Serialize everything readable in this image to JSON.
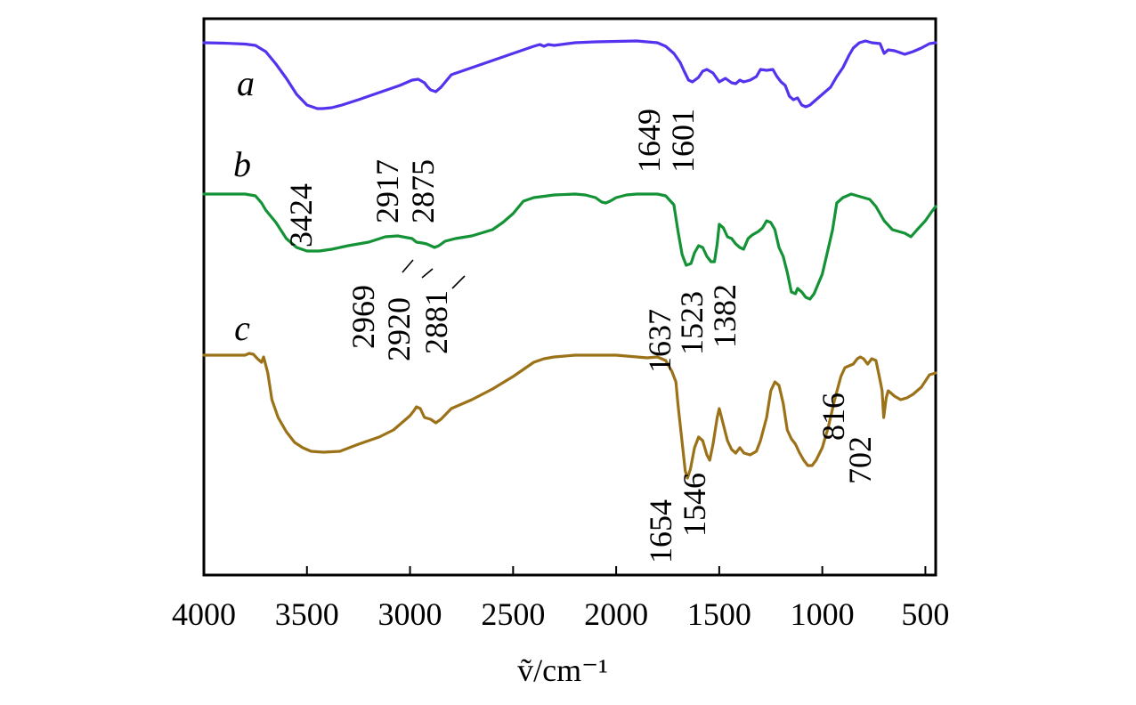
{
  "chart_data": {
    "type": "line",
    "title": "",
    "xlabel": "ṽ/cm⁻¹",
    "ylabel": "",
    "xlim": [
      4000,
      450
    ],
    "x_reversed": true,
    "x_ticks": [
      4000,
      3500,
      3000,
      2500,
      2000,
      1500,
      1000,
      500
    ],
    "y_ticks": false,
    "grid": false,
    "series": [
      {
        "name": "a",
        "color": "#5533ee",
        "points": [
          [
            4000,
            2.0
          ],
          [
            3900,
            2.5
          ],
          [
            3800,
            3.5
          ],
          [
            3750,
            5
          ],
          [
            3700,
            12
          ],
          [
            3650,
            26
          ],
          [
            3600,
            42
          ],
          [
            3550,
            60
          ],
          [
            3500,
            72
          ],
          [
            3450,
            76
          ],
          [
            3424,
            76
          ],
          [
            3380,
            75
          ],
          [
            3330,
            72
          ],
          [
            3250,
            66
          ],
          [
            3150,
            58
          ],
          [
            3050,
            50
          ],
          [
            2990,
            44
          ],
          [
            2960,
            43
          ],
          [
            2930,
            47
          ],
          [
            2917,
            51
          ],
          [
            2900,
            55
          ],
          [
            2875,
            57
          ],
          [
            2850,
            52
          ],
          [
            2800,
            38
          ],
          [
            2750,
            34
          ],
          [
            2650,
            26
          ],
          [
            2550,
            18
          ],
          [
            2450,
            10
          ],
          [
            2400,
            6
          ],
          [
            2370,
            4
          ],
          [
            2350,
            6
          ],
          [
            2330,
            4
          ],
          [
            2300,
            5
          ],
          [
            2200,
            2
          ],
          [
            2100,
            1
          ],
          [
            2000,
            0.5
          ],
          [
            1900,
            0
          ],
          [
            1800,
            2
          ],
          [
            1760,
            6
          ],
          [
            1720,
            14
          ],
          [
            1690,
            24
          ],
          [
            1670,
            34
          ],
          [
            1649,
            44
          ],
          [
            1630,
            46
          ],
          [
            1601,
            41
          ],
          [
            1580,
            34
          ],
          [
            1560,
            32
          ],
          [
            1530,
            36
          ],
          [
            1500,
            46
          ],
          [
            1470,
            42
          ],
          [
            1440,
            47
          ],
          [
            1420,
            48
          ],
          [
            1400,
            44
          ],
          [
            1382,
            46
          ],
          [
            1350,
            44
          ],
          [
            1320,
            40
          ],
          [
            1300,
            32
          ],
          [
            1270,
            33
          ],
          [
            1240,
            32
          ],
          [
            1220,
            40
          ],
          [
            1200,
            46
          ],
          [
            1180,
            50
          ],
          [
            1160,
            62
          ],
          [
            1140,
            66
          ],
          [
            1120,
            64
          ],
          [
            1100,
            72
          ],
          [
            1080,
            74
          ],
          [
            1060,
            72
          ],
          [
            1040,
            68
          ],
          [
            1000,
            60
          ],
          [
            960,
            52
          ],
          [
            930,
            40
          ],
          [
            900,
            30
          ],
          [
            870,
            16
          ],
          [
            850,
            8
          ],
          [
            820,
            2
          ],
          [
            790,
            0
          ],
          [
            760,
            2
          ],
          [
            720,
            3
          ],
          [
            700,
            14
          ],
          [
            680,
            10
          ],
          [
            650,
            11
          ],
          [
            600,
            15
          ],
          [
            560,
            12
          ],
          [
            520,
            8
          ],
          [
            480,
            3
          ],
          [
            450,
            2
          ]
        ]
      },
      {
        "name": "b",
        "color": "#139236",
        "points": [
          [
            4000,
            0
          ],
          [
            3800,
            0
          ],
          [
            3750,
            2
          ],
          [
            3720,
            10
          ],
          [
            3700,
            18
          ],
          [
            3650,
            32
          ],
          [
            3600,
            50
          ],
          [
            3550,
            60
          ],
          [
            3500,
            64
          ],
          [
            3440,
            64
          ],
          [
            3380,
            62
          ],
          [
            3300,
            58
          ],
          [
            3200,
            54
          ],
          [
            3120,
            48
          ],
          [
            3060,
            47
          ],
          [
            2990,
            50
          ],
          [
            2969,
            54
          ],
          [
            2940,
            55
          ],
          [
            2920,
            56
          ],
          [
            2900,
            58
          ],
          [
            2881,
            60
          ],
          [
            2860,
            58
          ],
          [
            2830,
            53
          ],
          [
            2780,
            50
          ],
          [
            2700,
            47
          ],
          [
            2600,
            40
          ],
          [
            2550,
            32
          ],
          [
            2500,
            22
          ],
          [
            2450,
            8
          ],
          [
            2400,
            4
          ],
          [
            2300,
            1
          ],
          [
            2200,
            0
          ],
          [
            2150,
            1
          ],
          [
            2100,
            4
          ],
          [
            2070,
            9
          ],
          [
            2050,
            10
          ],
          [
            2030,
            8
          ],
          [
            2000,
            4
          ],
          [
            1950,
            1
          ],
          [
            1900,
            0
          ],
          [
            1800,
            0
          ],
          [
            1760,
            2
          ],
          [
            1720,
            12
          ],
          [
            1700,
            42
          ],
          [
            1680,
            68
          ],
          [
            1660,
            80
          ],
          [
            1637,
            78
          ],
          [
            1620,
            66
          ],
          [
            1600,
            58
          ],
          [
            1580,
            60
          ],
          [
            1560,
            70
          ],
          [
            1540,
            76
          ],
          [
            1523,
            76
          ],
          [
            1510,
            56
          ],
          [
            1500,
            34
          ],
          [
            1480,
            38
          ],
          [
            1460,
            48
          ],
          [
            1440,
            50
          ],
          [
            1420,
            56
          ],
          [
            1400,
            60
          ],
          [
            1382,
            62
          ],
          [
            1360,
            50
          ],
          [
            1340,
            46
          ],
          [
            1310,
            42
          ],
          [
            1290,
            38
          ],
          [
            1270,
            30
          ],
          [
            1250,
            32
          ],
          [
            1230,
            40
          ],
          [
            1210,
            60
          ],
          [
            1190,
            70
          ],
          [
            1170,
            88
          ],
          [
            1150,
            110
          ],
          [
            1130,
            112
          ],
          [
            1120,
            106
          ],
          [
            1100,
            110
          ],
          [
            1080,
            116
          ],
          [
            1060,
            118
          ],
          [
            1040,
            112
          ],
          [
            1000,
            90
          ],
          [
            970,
            60
          ],
          [
            950,
            40
          ],
          [
            930,
            10
          ],
          [
            900,
            4
          ],
          [
            860,
            0
          ],
          [
            830,
            2
          ],
          [
            800,
            4
          ],
          [
            770,
            6
          ],
          [
            740,
            14
          ],
          [
            700,
            30
          ],
          [
            660,
            40
          ],
          [
            630,
            42
          ],
          [
            600,
            44
          ],
          [
            570,
            48
          ],
          [
            540,
            40
          ],
          [
            500,
            30
          ],
          [
            470,
            20
          ],
          [
            450,
            14
          ]
        ]
      },
      {
        "name": "c",
        "color": "#9b7218",
        "points": [
          [
            4000,
            0
          ],
          [
            3800,
            0
          ],
          [
            3780,
            -2
          ],
          [
            3760,
            -1
          ],
          [
            3740,
            4
          ],
          [
            3720,
            8
          ],
          [
            3710,
            2
          ],
          [
            3690,
            20
          ],
          [
            3670,
            50
          ],
          [
            3640,
            70
          ],
          [
            3600,
            86
          ],
          [
            3560,
            98
          ],
          [
            3520,
            104
          ],
          [
            3480,
            108
          ],
          [
            3420,
            109
          ],
          [
            3340,
            108
          ],
          [
            3250,
            100
          ],
          [
            3150,
            92
          ],
          [
            3080,
            84
          ],
          [
            3030,
            74
          ],
          [
            3000,
            68
          ],
          [
            2980,
            62
          ],
          [
            2969,
            58
          ],
          [
            2950,
            60
          ],
          [
            2930,
            70
          ],
          [
            2900,
            72
          ],
          [
            2875,
            76
          ],
          [
            2850,
            72
          ],
          [
            2800,
            60
          ],
          [
            2700,
            50
          ],
          [
            2600,
            38
          ],
          [
            2500,
            24
          ],
          [
            2400,
            8
          ],
          [
            2350,
            4
          ],
          [
            2300,
            2
          ],
          [
            2200,
            0
          ],
          [
            2000,
            0
          ],
          [
            1900,
            2
          ],
          [
            1850,
            3
          ],
          [
            1800,
            2
          ],
          [
            1760,
            6
          ],
          [
            1730,
            18
          ],
          [
            1710,
            30
          ],
          [
            1700,
            56
          ],
          [
            1680,
            98
          ],
          [
            1665,
            130
          ],
          [
            1654,
            138
          ],
          [
            1640,
            128
          ],
          [
            1620,
            104
          ],
          [
            1600,
            92
          ],
          [
            1580,
            96
          ],
          [
            1560,
            112
          ],
          [
            1546,
            118
          ],
          [
            1530,
            100
          ],
          [
            1510,
            70
          ],
          [
            1500,
            60
          ],
          [
            1480,
            78
          ],
          [
            1460,
            96
          ],
          [
            1440,
            106
          ],
          [
            1420,
            110
          ],
          [
            1400,
            104
          ],
          [
            1380,
            110
          ],
          [
            1350,
            112
          ],
          [
            1320,
            108
          ],
          [
            1300,
            96
          ],
          [
            1270,
            70
          ],
          [
            1250,
            40
          ],
          [
            1230,
            30
          ],
          [
            1210,
            34
          ],
          [
            1190,
            54
          ],
          [
            1170,
            84
          ],
          [
            1150,
            94
          ],
          [
            1130,
            100
          ],
          [
            1110,
            110
          ],
          [
            1090,
            118
          ],
          [
            1070,
            124
          ],
          [
            1050,
            124
          ],
          [
            1030,
            118
          ],
          [
            1000,
            104
          ],
          [
            970,
            80
          ],
          [
            940,
            50
          ],
          [
            910,
            24
          ],
          [
            890,
            14
          ],
          [
            870,
            12
          ],
          [
            850,
            10
          ],
          [
            830,
            4
          ],
          [
            816,
            2
          ],
          [
            800,
            4
          ],
          [
            780,
            10
          ],
          [
            760,
            4
          ],
          [
            740,
            6
          ],
          [
            720,
            28
          ],
          [
            710,
            40
          ],
          [
            702,
            70
          ],
          [
            690,
            48
          ],
          [
            680,
            40
          ],
          [
            670,
            42
          ],
          [
            650,
            46
          ],
          [
            620,
            50
          ],
          [
            590,
            48
          ],
          [
            560,
            44
          ],
          [
            520,
            36
          ],
          [
            480,
            22
          ],
          [
            450,
            20
          ]
        ]
      }
    ],
    "series_labels": [
      "a",
      "b",
      "c"
    ],
    "annotations": [
      {
        "series": "a",
        "text": "3424"
      },
      {
        "series": "a",
        "text": "2917"
      },
      {
        "series": "a",
        "text": "2875"
      },
      {
        "series": "a",
        "text": "1649"
      },
      {
        "series": "a",
        "text": "1601"
      },
      {
        "series": "b",
        "text": "2969"
      },
      {
        "series": "b",
        "text": "2920"
      },
      {
        "series": "b",
        "text": "2881"
      },
      {
        "series": "b",
        "text": "1637"
      },
      {
        "series": "b",
        "text": "1523"
      },
      {
        "series": "b",
        "text": "1382"
      },
      {
        "series": "c",
        "text": "1654"
      },
      {
        "series": "c",
        "text": "1546"
      },
      {
        "series": "c",
        "text": "816"
      },
      {
        "series": "c",
        "text": "702"
      }
    ]
  }
}
